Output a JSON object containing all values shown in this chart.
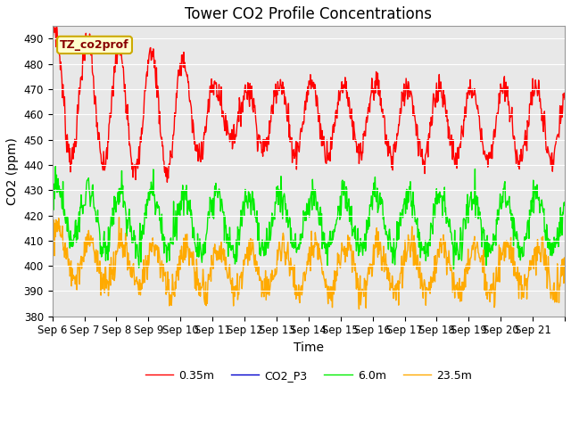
{
  "title": "Tower CO2 Profile Concentrations",
  "xlabel": "Time",
  "ylabel": "CO2 (ppm)",
  "ylim": [
    380,
    495
  ],
  "yticks": [
    380,
    390,
    400,
    410,
    420,
    430,
    440,
    450,
    460,
    470,
    480,
    490
  ],
  "n_days": 16,
  "x_tick_labels": [
    "Sep 6",
    "Sep 7",
    "Sep 8",
    "Sep 9",
    "Sep 10",
    "Sep 11",
    "Sep 12",
    "Sep 13",
    "Sep 14",
    "Sep 15",
    "Sep 16",
    "Sep 17",
    "Sep 18",
    "Sep 19",
    "Sep 20",
    "Sep 21"
  ],
  "colors": {
    "red": "#ff0000",
    "blue": "#0000cc",
    "green": "#00ee00",
    "orange": "#ffaa00"
  },
  "legend_labels": [
    "0.35m",
    "CO2_P3",
    "6.0m",
    "23.5m"
  ],
  "annotation_text": "TZ_co2prof",
  "annotation_bg": "#ffffcc",
  "annotation_border": "#ccaa00",
  "bg_color": "#e8e8e8",
  "title_fontsize": 12,
  "axis_fontsize": 10,
  "tick_fontsize": 8.5
}
